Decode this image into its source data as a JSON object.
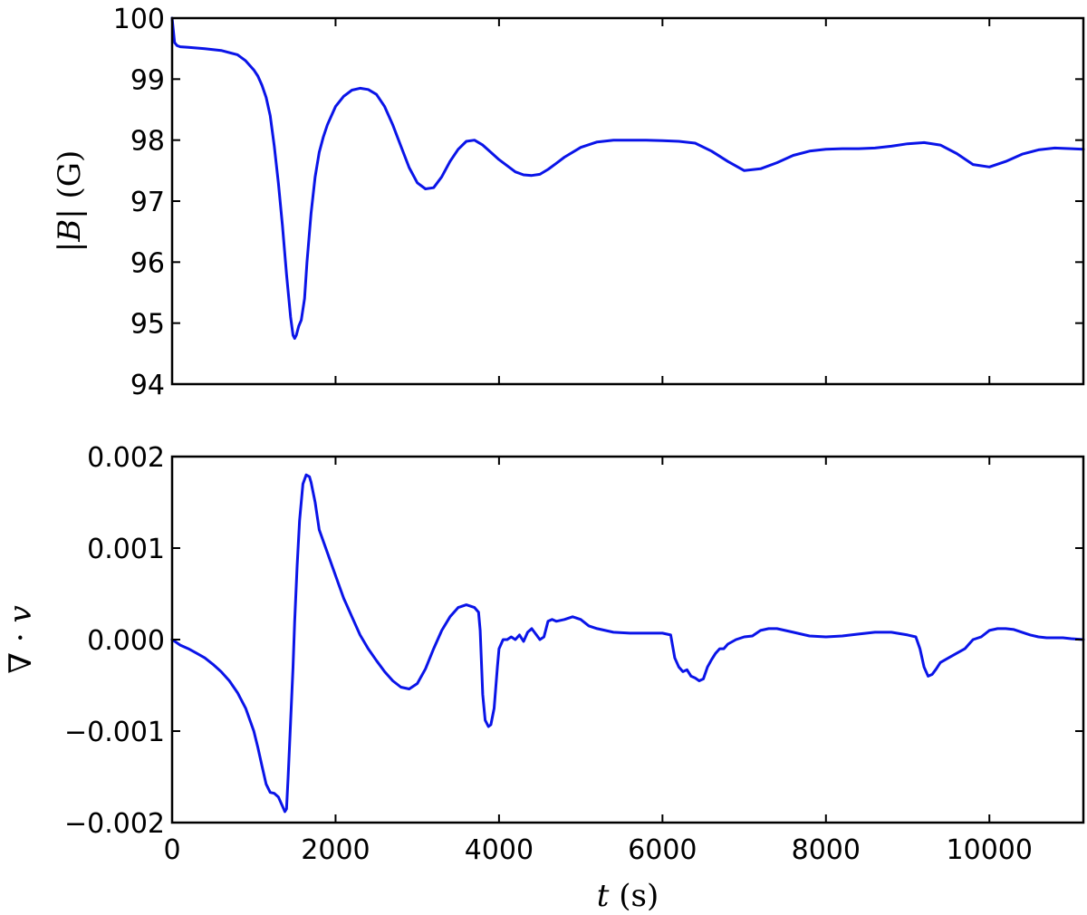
{
  "colors": {
    "line": "#0a14e8",
    "axes": "#000000",
    "background": "#ffffff"
  },
  "chart_data": [
    {
      "type": "line",
      "title": "",
      "xlabel": "",
      "ylabel_parts": [
        "|",
        "B",
        "|",
        " (G)"
      ],
      "xlim": [
        0,
        11150
      ],
      "ylim": [
        94,
        100
      ],
      "xticks": [
        0,
        2000,
        4000,
        6000,
        8000,
        10000
      ],
      "xtick_labels_visible": false,
      "yticks": [
        94,
        95,
        96,
        97,
        98,
        99,
        100
      ],
      "ytick_labels": [
        "94",
        "95",
        "96",
        "97",
        "98",
        "99",
        "100"
      ],
      "grid": false,
      "legend": "none",
      "series": [
        {
          "x": [
            0,
            30,
            60,
            100,
            200,
            400,
            600,
            800,
            900,
            1000,
            1050,
            1100,
            1150,
            1200,
            1250,
            1300,
            1350,
            1400,
            1450,
            1480,
            1500,
            1520,
            1550,
            1580,
            1620,
            1650,
            1700,
            1750,
            1800,
            1850,
            1900,
            2000,
            2100,
            2200,
            2300,
            2400,
            2500,
            2600,
            2700,
            2800,
            2900,
            3000,
            3100,
            3200,
            3300,
            3400,
            3500,
            3600,
            3700,
            3800,
            3900,
            4000,
            4100,
            4200,
            4300,
            4400,
            4500,
            4600,
            4700,
            4800,
            5000,
            5200,
            5400,
            5600,
            5800,
            6000,
            6200,
            6400,
            6600,
            6800,
            7000,
            7200,
            7400,
            7600,
            7800,
            8000,
            8200,
            8400,
            8600,
            8800,
            9000,
            9200,
            9400,
            9600,
            9800,
            10000,
            10200,
            10400,
            10600,
            10800,
            11000,
            11150
          ],
          "y": [
            100.0,
            99.6,
            99.55,
            99.53,
            99.52,
            99.5,
            99.47,
            99.4,
            99.3,
            99.15,
            99.05,
            98.9,
            98.7,
            98.4,
            97.9,
            97.3,
            96.6,
            95.8,
            95.1,
            94.8,
            94.75,
            94.8,
            94.95,
            95.05,
            95.4,
            96.0,
            96.8,
            97.4,
            97.8,
            98.05,
            98.25,
            98.55,
            98.72,
            98.82,
            98.85,
            98.83,
            98.75,
            98.55,
            98.25,
            97.9,
            97.55,
            97.3,
            97.2,
            97.22,
            97.4,
            97.65,
            97.85,
            97.98,
            98.0,
            97.92,
            97.8,
            97.68,
            97.58,
            97.48,
            97.43,
            97.42,
            97.44,
            97.52,
            97.62,
            97.72,
            97.88,
            97.97,
            98.0,
            98.0,
            98.0,
            97.99,
            97.98,
            97.95,
            97.82,
            97.65,
            97.5,
            97.53,
            97.63,
            97.75,
            97.82,
            97.85,
            97.86,
            97.86,
            97.87,
            97.9,
            97.94,
            97.96,
            97.92,
            97.78,
            97.6,
            97.56,
            97.65,
            97.77,
            97.84,
            97.87,
            97.86,
            97.85
          ]
        }
      ]
    },
    {
      "type": "line",
      "title": "",
      "xlabel_parts": [
        "t",
        " (s)"
      ],
      "ylabel_parts": [
        "∇ · ",
        "v"
      ],
      "xlim": [
        0,
        11150
      ],
      "ylim": [
        -0.002,
        0.002
      ],
      "xticks": [
        0,
        2000,
        4000,
        6000,
        8000,
        10000
      ],
      "xtick_labels": [
        "0",
        "2000",
        "4000",
        "6000",
        "8000",
        "10000"
      ],
      "yticks": [
        -0.002,
        -0.001,
        0.0,
        0.001,
        0.002
      ],
      "ytick_labels": [
        "−0.002",
        "−0.001",
        "0.000",
        "0.001",
        "0.002"
      ],
      "grid": false,
      "legend": "none",
      "series": [
        {
          "x": [
            0,
            50,
            100,
            200,
            300,
            400,
            500,
            600,
            700,
            800,
            900,
            1000,
            1050,
            1100,
            1150,
            1200,
            1250,
            1300,
            1350,
            1380,
            1400,
            1420,
            1450,
            1480,
            1500,
            1530,
            1560,
            1600,
            1640,
            1680,
            1700,
            1750,
            1800,
            1900,
            2000,
            2100,
            2150,
            2200,
            2300,
            2400,
            2500,
            2600,
            2700,
            2800,
            2900,
            3000,
            3100,
            3200,
            3300,
            3400,
            3500,
            3600,
            3700,
            3750,
            3770,
            3800,
            3830,
            3870,
            3900,
            3940,
            3980,
            4000,
            4050,
            4100,
            4150,
            4200,
            4250,
            4300,
            4350,
            4400,
            4450,
            4500,
            4550,
            4600,
            4650,
            4700,
            4800,
            4900,
            5000,
            5100,
            5200,
            5300,
            5400,
            5600,
            5800,
            6000,
            6100,
            6150,
            6200,
            6250,
            6300,
            6350,
            6400,
            6450,
            6500,
            6550,
            6600,
            6650,
            6700,
            6750,
            6800,
            6900,
            7000,
            7100,
            7200,
            7300,
            7400,
            7500,
            7600,
            7800,
            8000,
            8200,
            8400,
            8600,
            8800,
            9000,
            9100,
            9150,
            9200,
            9250,
            9300,
            9350,
            9400,
            9500,
            9600,
            9700,
            9750,
            9800,
            9900,
            10000,
            10100,
            10200,
            10300,
            10400,
            10500,
            10600,
            10700,
            10800,
            10900,
            11000,
            11150
          ],
          "y": [
            0.0,
            -3e-05,
            -6e-05,
            -0.0001,
            -0.00015,
            -0.0002,
            -0.00027,
            -0.00035,
            -0.00045,
            -0.00058,
            -0.00075,
            -0.001,
            -0.00118,
            -0.00138,
            -0.00158,
            -0.00167,
            -0.00168,
            -0.00172,
            -0.00182,
            -0.00188,
            -0.00185,
            -0.0015,
            -0.0009,
            -0.0003,
            0.0002,
            0.0008,
            0.0013,
            0.0017,
            0.0018,
            0.00178,
            0.00172,
            0.0015,
            0.0012,
            0.00095,
            0.0007,
            0.00045,
            0.00035,
            0.00025,
            5e-05,
            -0.0001,
            -0.00023,
            -0.00035,
            -0.00045,
            -0.00052,
            -0.00054,
            -0.00048,
            -0.00032,
            -0.0001,
            0.0001,
            0.00025,
            0.00035,
            0.00038,
            0.00035,
            0.0003,
            0.0001,
            -0.0006,
            -0.00088,
            -0.00095,
            -0.00093,
            -0.00075,
            -0.0003,
            -0.0001,
            0.0,
            0.0,
            3e-05,
            0.0,
            5e-05,
            -2e-05,
            8e-05,
            0.00012,
            6e-05,
            0.0,
            3e-05,
            0.0002,
            0.00022,
            0.0002,
            0.00022,
            0.00025,
            0.00022,
            0.00015,
            0.00012,
            0.0001,
            8e-05,
            7e-05,
            7e-05,
            7e-05,
            5e-05,
            -0.0002,
            -0.0003,
            -0.00035,
            -0.00033,
            -0.0004,
            -0.00042,
            -0.00045,
            -0.00043,
            -0.0003,
            -0.00022,
            -0.00015,
            -0.0001,
            -0.0001,
            -5e-05,
            0.0,
            3e-05,
            4e-05,
            0.0001,
            0.00012,
            0.00012,
            0.0001,
            8e-05,
            4e-05,
            3e-05,
            4e-05,
            6e-05,
            8e-05,
            8e-05,
            5e-05,
            3e-05,
            -0.0001,
            -0.0003,
            -0.0004,
            -0.00038,
            -0.00032,
            -0.00025,
            -0.0002,
            -0.00015,
            -0.0001,
            -5e-05,
            0.0,
            3e-05,
            0.0001,
            0.00012,
            0.00012,
            0.00011,
            8e-05,
            5e-05,
            3e-05,
            2e-05,
            2e-05,
            2e-05,
            1e-05,
            0.0
          ]
        }
      ]
    }
  ]
}
